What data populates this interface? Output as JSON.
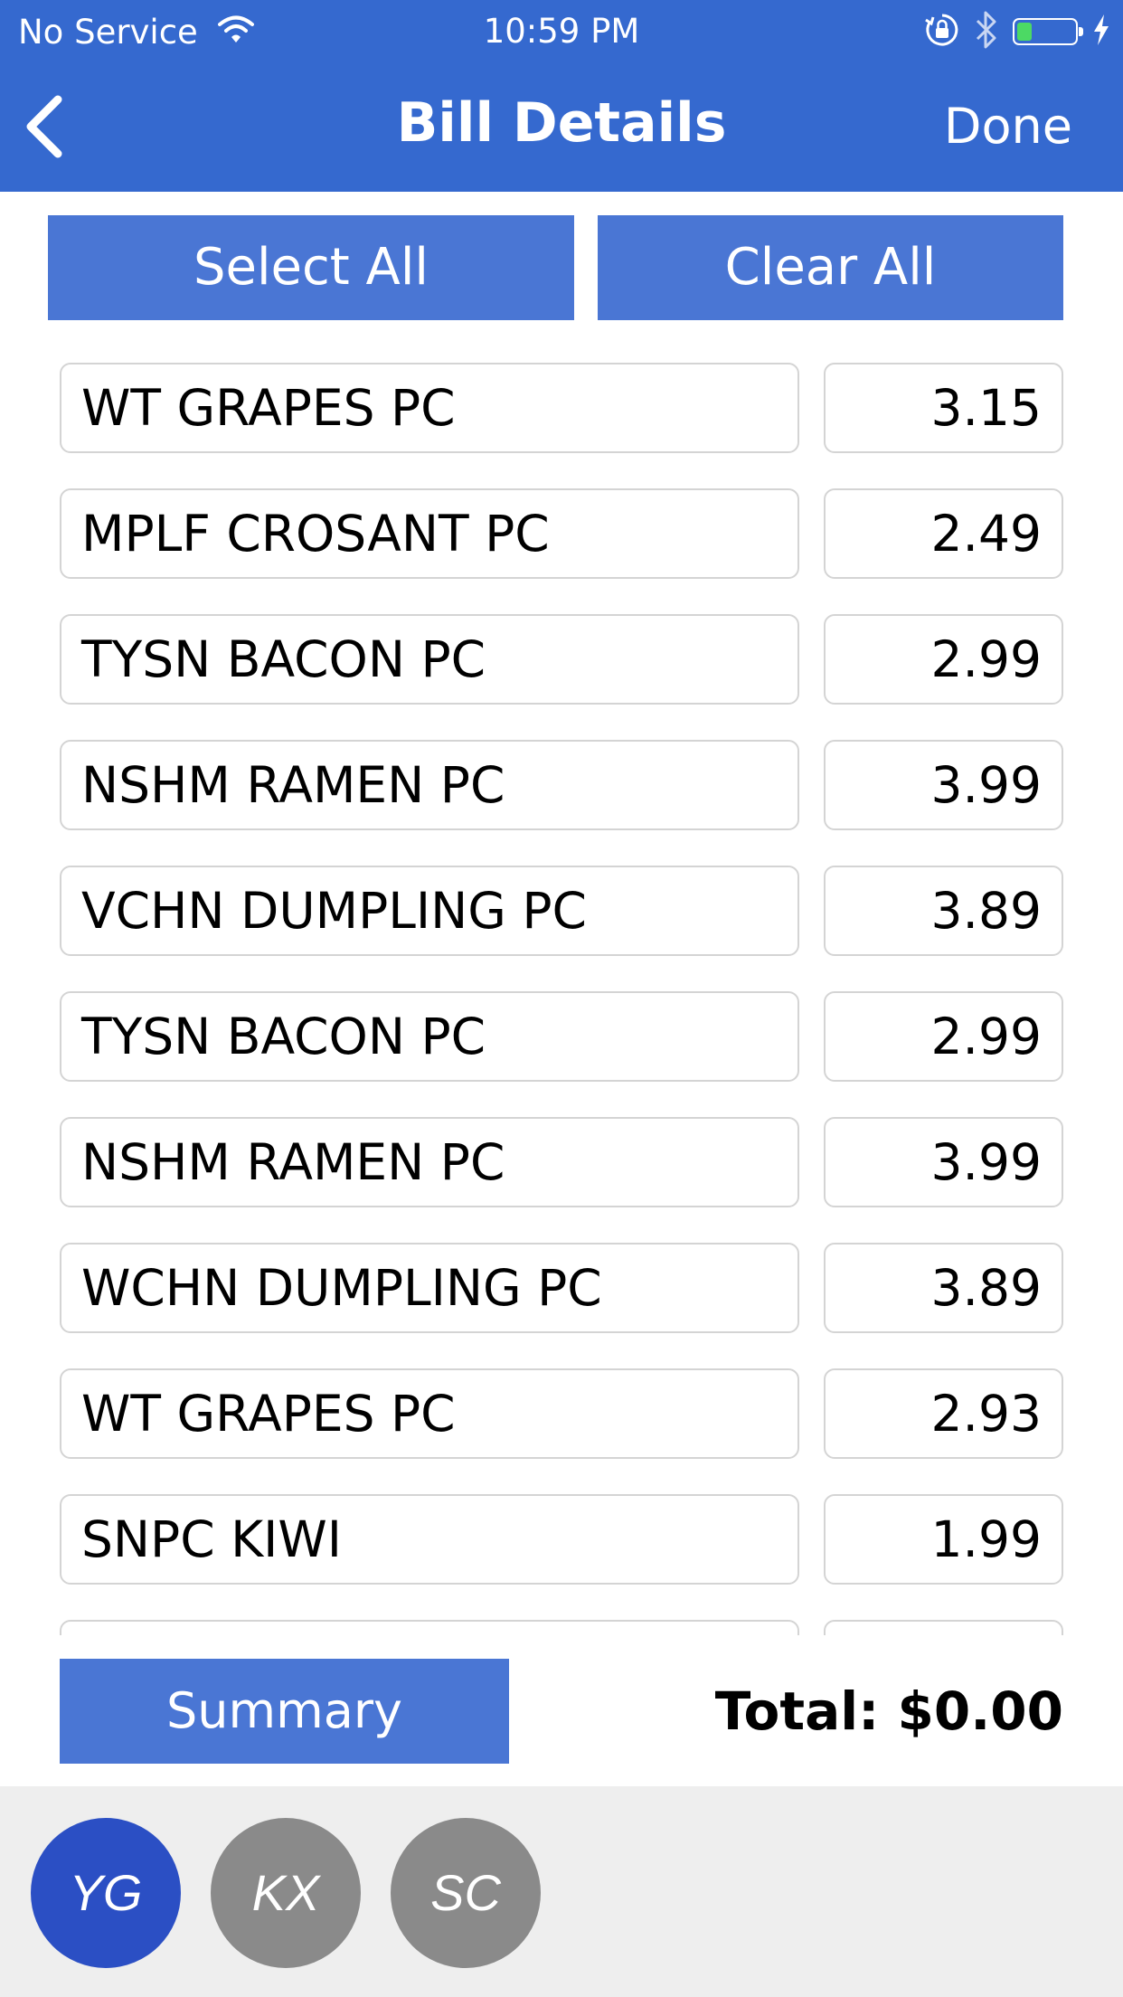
{
  "status_bar": {
    "carrier": "No Service",
    "time": "10:59 PM"
  },
  "nav": {
    "title": "Bill Details",
    "done_label": "Done"
  },
  "actions": {
    "select_all": "Select All",
    "clear_all": "Clear All"
  },
  "items": [
    {
      "name": "WT GRAPES PC",
      "price": "3.15"
    },
    {
      "name": "MPLF CROSANT PC",
      "price": "2.49"
    },
    {
      "name": "TYSN BACON PC",
      "price": "2.99"
    },
    {
      "name": "NSHM RAMEN PC",
      "price": "3.99"
    },
    {
      "name": "VCHN DUMPLING PC",
      "price": "3.89"
    },
    {
      "name": "TYSN BACON PC",
      "price": "2.99"
    },
    {
      "name": "NSHM RAMEN PC",
      "price": "3.99"
    },
    {
      "name": "WCHN DUMPLING PC",
      "price": "3.89"
    },
    {
      "name": "WT GRAPES PC",
      "price": "2.93"
    },
    {
      "name": "SNPC KIWI",
      "price": "1.99"
    },
    {
      "name": "",
      "price": ""
    }
  ],
  "footer": {
    "summary_label": "Summary",
    "total_label": "Total: $0.00"
  },
  "people": [
    {
      "initials": "YG",
      "color": "#2b4fc4"
    },
    {
      "initials": "KX",
      "color": "#8a8a8a"
    },
    {
      "initials": "SC",
      "color": "#8a8a8a"
    }
  ],
  "colors": {
    "brand": "#3569cf",
    "button": "#4a76d4",
    "battery": "#4cd964"
  },
  "battery_level": 0.33
}
